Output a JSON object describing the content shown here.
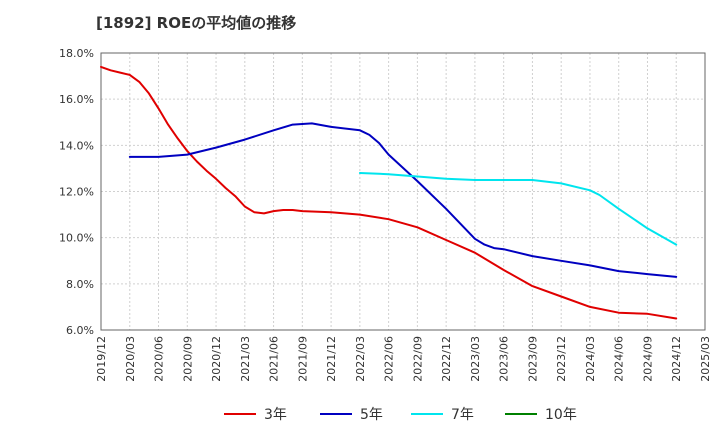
{
  "chart_data": {
    "type": "line",
    "title": "[1892]  ROEの平均値の推移",
    "xlabel": "",
    "ylabel": "",
    "ylim": [
      6.0,
      18.0
    ],
    "yticks": [
      "6.0%",
      "8.0%",
      "10.0%",
      "12.0%",
      "14.0%",
      "16.0%",
      "18.0%"
    ],
    "ytick_values": [
      6,
      8,
      10,
      12,
      14,
      16,
      18
    ],
    "xticks": [
      "2019/12",
      "2020/03",
      "2020/06",
      "2020/09",
      "2020/12",
      "2021/03",
      "2021/06",
      "2021/09",
      "2021/12",
      "2022/03",
      "2022/06",
      "2022/09",
      "2022/12",
      "2023/03",
      "2023/06",
      "2023/09",
      "2023/12",
      "2024/03",
      "2024/06",
      "2024/09",
      "2024/12",
      "2025/03"
    ],
    "grid": true,
    "legend_position": "bottom",
    "series": [
      {
        "name": "3年",
        "color": "#e00000",
        "points": [
          [
            "2019/12",
            17.4
          ],
          [
            "2020/01",
            17.25
          ],
          [
            "2020/02",
            17.15
          ],
          [
            "2020/03",
            17.05
          ],
          [
            "2020/04",
            16.75
          ],
          [
            "2020/05",
            16.25
          ],
          [
            "2020/06",
            15.6
          ],
          [
            "2020/07",
            14.9
          ],
          [
            "2020/08",
            14.3
          ],
          [
            "2020/09",
            13.75
          ],
          [
            "2020/10",
            13.3
          ],
          [
            "2020/11",
            12.9
          ],
          [
            "2020/12",
            12.55
          ],
          [
            "2021/01",
            12.15
          ],
          [
            "2021/02",
            11.8
          ],
          [
            "2021/03",
            11.35
          ],
          [
            "2021/04",
            11.1
          ],
          [
            "2021/05",
            11.05
          ],
          [
            "2021/06",
            11.15
          ],
          [
            "2021/07",
            11.2
          ],
          [
            "2021/08",
            11.2
          ],
          [
            "2021/09",
            11.15
          ],
          [
            "2021/12",
            11.1
          ],
          [
            "2022/03",
            11.0
          ],
          [
            "2022/06",
            10.8
          ],
          [
            "2022/09",
            10.45
          ],
          [
            "2022/12",
            9.9
          ],
          [
            "2023/03",
            9.35
          ],
          [
            "2023/06",
            8.6
          ],
          [
            "2023/09",
            7.9
          ],
          [
            "2023/12",
            7.45
          ],
          [
            "2024/03",
            7.0
          ],
          [
            "2024/06",
            6.75
          ],
          [
            "2024/09",
            6.7
          ],
          [
            "2024/12",
            6.5
          ]
        ]
      },
      {
        "name": "5年",
        "color": "#0000c0",
        "points": [
          [
            "2020/03",
            13.5
          ],
          [
            "2020/06",
            13.5
          ],
          [
            "2020/09",
            13.6
          ],
          [
            "2020/12",
            13.9
          ],
          [
            "2021/03",
            14.25
          ],
          [
            "2021/06",
            14.65
          ],
          [
            "2021/08",
            14.9
          ],
          [
            "2021/10",
            14.95
          ],
          [
            "2021/12",
            14.8
          ],
          [
            "2022/03",
            14.65
          ],
          [
            "2022/04",
            14.45
          ],
          [
            "2022/05",
            14.1
          ],
          [
            "2022/06",
            13.6
          ],
          [
            "2022/09",
            12.45
          ],
          [
            "2022/12",
            11.25
          ],
          [
            "2023/03",
            9.95
          ],
          [
            "2023/04",
            9.7
          ],
          [
            "2023/05",
            9.55
          ],
          [
            "2023/06",
            9.5
          ],
          [
            "2023/09",
            9.2
          ],
          [
            "2023/12",
            9.0
          ],
          [
            "2024/03",
            8.8
          ],
          [
            "2024/06",
            8.55
          ],
          [
            "2024/09",
            8.42
          ],
          [
            "2024/12",
            8.3
          ]
        ]
      },
      {
        "name": "7年",
        "color": "#00e5ee",
        "points": [
          [
            "2022/03",
            12.8
          ],
          [
            "2022/06",
            12.75
          ],
          [
            "2022/09",
            12.65
          ],
          [
            "2022/12",
            12.55
          ],
          [
            "2023/03",
            12.5
          ],
          [
            "2023/06",
            12.5
          ],
          [
            "2023/09",
            12.5
          ],
          [
            "2023/12",
            12.35
          ],
          [
            "2024/03",
            12.05
          ],
          [
            "2024/04",
            11.85
          ],
          [
            "2024/06",
            11.25
          ],
          [
            "2024/09",
            10.4
          ],
          [
            "2024/12",
            9.7
          ]
        ]
      },
      {
        "name": "10年",
        "color": "#008000",
        "points": []
      }
    ]
  }
}
